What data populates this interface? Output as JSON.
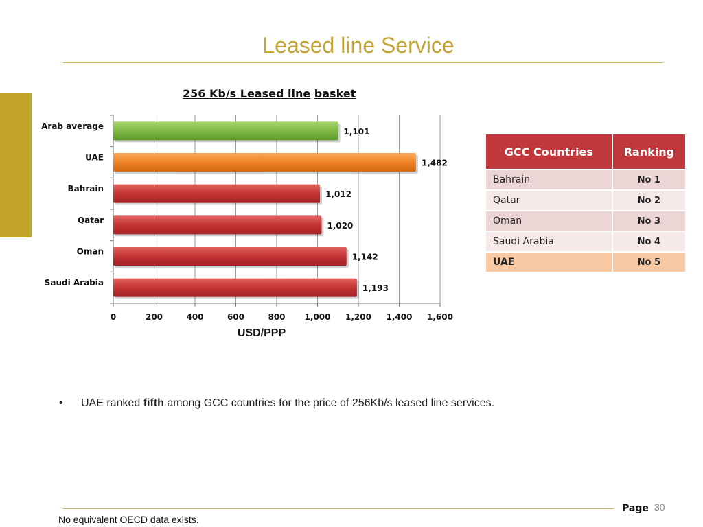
{
  "slide": {
    "title": "Leased line Service",
    "page_label": "Page",
    "page_number": "30",
    "footnote": "No equivalent OECD data exists."
  },
  "chart_title": {
    "part1": "256 Kb/s Leased line",
    "part2": "basket"
  },
  "chart_data": {
    "type": "bar",
    "orientation": "horizontal",
    "title": "256 Kb/s Leased line basket",
    "xlabel": "USD/PPP",
    "ylabel": "",
    "xlim": [
      0,
      1600
    ],
    "xticks": [
      "0",
      "200",
      "400",
      "600",
      "800",
      "1,000",
      "1,200",
      "1,400",
      "1,600"
    ],
    "categories": [
      "Arab average",
      "UAE",
      "Bahrain",
      "Qatar",
      "Oman",
      "Saudi Arabia"
    ],
    "values": [
      1101,
      1482,
      1012,
      1020,
      1142,
      1193
    ],
    "value_labels": [
      "1,101",
      "1,482",
      "1,012",
      "1,020",
      "1,142",
      "1,193"
    ],
    "colors": [
      "#7fb843",
      "#ef8426",
      "#c43335",
      "#c43335",
      "#c43335",
      "#c43335"
    ],
    "grid": true
  },
  "table": {
    "headers": [
      "GCC Countries",
      "Ranking"
    ],
    "rows": [
      {
        "country": "Bahrain",
        "rank": "No 1"
      },
      {
        "country": "Qatar",
        "rank": "No 2"
      },
      {
        "country": "Oman",
        "rank": "No 3"
      },
      {
        "country": "Saudi Arabia",
        "rank": "No 4"
      },
      {
        "country": "UAE",
        "rank": "No 5"
      }
    ],
    "highlight_color": "#f8c9a2",
    "header_color": "#c0383b"
  },
  "bullet": {
    "symbol": "•",
    "before": "UAE ranked ",
    "bold": "fifth",
    "after": " among GCC countries for the price of 256Kb/s leased line services."
  }
}
